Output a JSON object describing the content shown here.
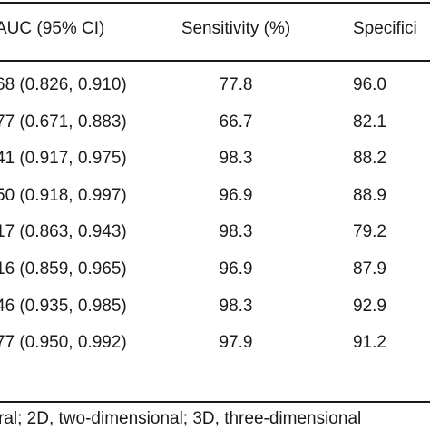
{
  "table": {
    "headers": {
      "auc": "AUC (95% CI)",
      "sensitivity": "Sensitivity (%)",
      "specificity": "Specifici"
    },
    "rows": [
      {
        "auc": "68 (0.826, 0.910)",
        "sensitivity": "77.8",
        "specificity": "96.0"
      },
      {
        "auc": "77 (0.671, 0.883)",
        "sensitivity": "66.7",
        "specificity": "82.1"
      },
      {
        "auc": "41 (0.917, 0.975)",
        "sensitivity": "98.3",
        "specificity": "88.2"
      },
      {
        "auc": "50 (0.918, 0.997)",
        "sensitivity": "96.9",
        "specificity": "88.9"
      },
      {
        "auc": "17 (0.863, 0.943)",
        "sensitivity": "98.3",
        "specificity": "79.2"
      },
      {
        "auc": "16 (0.859, 0.965)",
        "sensitivity": "96.9",
        "specificity": "87.9"
      },
      {
        "auc": "46 (0.935, 0.985)",
        "sensitivity": "98.3",
        "specificity": "92.9"
      },
      {
        "auc": "77 (0.950, 0.992)",
        "sensitivity": "97.9",
        "specificity": "91.2"
      }
    ],
    "footnote": "ral; 2D, two-dimensional; 3D, three-dimensional"
  }
}
